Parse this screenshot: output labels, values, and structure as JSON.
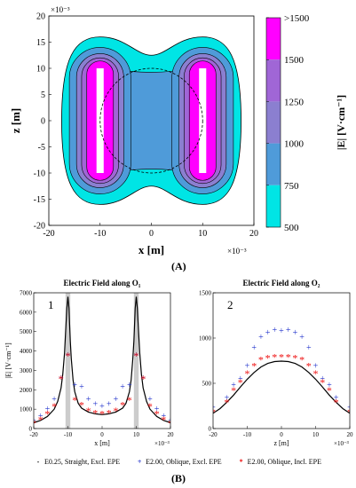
{
  "figure": {
    "panel_a_label": "(A)",
    "panel_b_label": "(B)"
  },
  "chart_data": [
    {
      "type": "heatmap",
      "xlabel": "x [m]",
      "ylabel": "z [m]",
      "x_exponent": "×10⁻³",
      "y_exponent": "×10⁻³",
      "xlim": [
        -20,
        20
      ],
      "ylim": [
        -20,
        20
      ],
      "x_ticks": [
        "-20",
        "-10",
        "0",
        "10",
        "20"
      ],
      "y_ticks": [
        "20",
        "15",
        "10",
        "5",
        "0",
        "-5",
        "-10",
        "-15",
        "-20"
      ],
      "colorbar_label": "|E| [V·cm⁻¹]",
      "colorbar_ticks": [
        ">1500",
        "1500",
        "1250",
        "1000",
        "750",
        "500"
      ],
      "colors": [
        "#ffffff",
        "#00e5e5",
        "#4f9bd9",
        "#8b7fd0",
        "#a066d6",
        "#ff00ff"
      ],
      "electrodes_x": [
        -10,
        10
      ],
      "electrode_halfwidth": 0.7,
      "electrode_halfheight": 10,
      "dashed_circle_radius": 10
    },
    {
      "type": "line",
      "title": "Electric Field along O₁",
      "panel_number": "1",
      "xlabel": "x [m]",
      "ylabel": "|E| [V·cm⁻¹]",
      "x_exponent": "×10⁻³",
      "xlim": [
        -20,
        20
      ],
      "ylim": [
        0,
        7000
      ],
      "x_ticks": [
        "-20",
        "-10",
        "0",
        "10",
        "20"
      ],
      "y_ticks": [
        "7000",
        "6000",
        "5000",
        "4000",
        "3000",
        "2000",
        "1000",
        "0"
      ],
      "shaded_bands_x": [
        -10,
        10
      ],
      "series": [
        {
          "name": "E0.25, Straight, Excl. EPE",
          "style": "line",
          "color": "#000000",
          "x": [
            -20,
            -18,
            -16,
            -14,
            -13,
            -12,
            -11.5,
            -11,
            -10.7,
            -10.5,
            -10.3,
            -10,
            -9.7,
            -9.5,
            -9.3,
            -9,
            -8.5,
            -8,
            -7,
            -6,
            -4,
            -2,
            0,
            2,
            4,
            6,
            7,
            8,
            8.5,
            9,
            9.3,
            9.5,
            9.7,
            10,
            10.3,
            10.5,
            10.7,
            11,
            11.5,
            12,
            13,
            14,
            16,
            18,
            20
          ],
          "y": [
            300,
            420,
            620,
            1000,
            1400,
            2100,
            2800,
            3900,
            4900,
            5600,
            6200,
            6800,
            6200,
            5400,
            4500,
            3600,
            2500,
            1900,
            1300,
            1050,
            850,
            760,
            720,
            760,
            850,
            1050,
            1300,
            1900,
            2500,
            3600,
            4500,
            5400,
            6200,
            6800,
            6200,
            5600,
            4900,
            3900,
            2800,
            2100,
            1400,
            1000,
            620,
            420,
            300
          ]
        },
        {
          "name": "E2.00, Oblique, Excl. EPE",
          "style": "plus",
          "color": "#2233cc",
          "x": [
            -20,
            -18,
            -16,
            -14,
            -12,
            -10,
            -8,
            -6,
            -4,
            -2,
            0,
            2,
            4,
            6,
            8,
            10,
            12,
            14,
            16,
            18,
            20
          ],
          "y": [
            420,
            650,
            1000,
            1500,
            2600,
            3800,
            2250,
            2150,
            1500,
            1250,
            1150,
            1250,
            1500,
            2150,
            2250,
            3800,
            2600,
            1500,
            1000,
            650,
            420
          ]
        },
        {
          "name": "E2.00, Oblique, Incl. EPE",
          "style": "asterisk",
          "color": "#ee1111",
          "x": [
            -20,
            -18,
            -16,
            -14,
            -12,
            -10,
            -8,
            -6,
            -4,
            -2,
            0,
            2,
            4,
            6,
            8,
            10,
            12,
            14,
            16,
            18,
            20
          ],
          "y": [
            330,
            500,
            800,
            1200,
            2600,
            3800,
            1500,
            1250,
            950,
            850,
            800,
            850,
            950,
            1250,
            1500,
            3800,
            2600,
            1200,
            800,
            500,
            330
          ]
        }
      ]
    },
    {
      "type": "line",
      "title": "Electric Field along O₂",
      "panel_number": "2",
      "xlabel": "z [m]",
      "ylabel": "",
      "x_exponent": "×10⁻³",
      "xlim": [
        -20,
        20
      ],
      "ylim": [
        0,
        1500
      ],
      "x_ticks": [
        "-20",
        "-10",
        "0",
        "10",
        "20"
      ],
      "y_ticks": [
        "1500",
        "1000",
        "500",
        "0"
      ],
      "series": [
        {
          "name": "E0.25, Straight, Excl. EPE",
          "style": "line",
          "color": "#000000",
          "x": [
            -20,
            -18,
            -16,
            -14,
            -12,
            -10,
            -8,
            -6,
            -4,
            -2,
            0,
            2,
            4,
            6,
            8,
            10,
            12,
            14,
            16,
            18,
            20
          ],
          "y": [
            170,
            220,
            290,
            370,
            460,
            545,
            620,
            680,
            720,
            740,
            745,
            740,
            720,
            680,
            620,
            545,
            460,
            370,
            290,
            220,
            170
          ]
        },
        {
          "name": "E2.00, Oblique, Excl. EPE",
          "style": "plus",
          "color": "#2233cc",
          "x": [
            -20,
            -16,
            -14,
            -12,
            -10,
            -8,
            -6,
            -4,
            -2,
            0,
            2,
            4,
            6,
            8,
            10,
            12,
            14,
            16,
            20
          ],
          "y": [
            230,
            340,
            480,
            550,
            690,
            890,
            1010,
            1060,
            1090,
            1080,
            1090,
            1060,
            1010,
            890,
            690,
            550,
            480,
            340,
            230
          ]
        },
        {
          "name": "E2.00, Oblique, Incl. EPE",
          "style": "asterisk",
          "color": "#ee1111",
          "x": [
            -20,
            -16,
            -14,
            -12,
            -10,
            -8,
            -6,
            -4,
            -2,
            0,
            2,
            4,
            6,
            8,
            10,
            12,
            14,
            16,
            20
          ],
          "y": [
            190,
            300,
            430,
            520,
            620,
            700,
            770,
            790,
            800,
            800,
            800,
            790,
            770,
            700,
            620,
            520,
            430,
            300,
            190
          ]
        }
      ]
    }
  ]
}
